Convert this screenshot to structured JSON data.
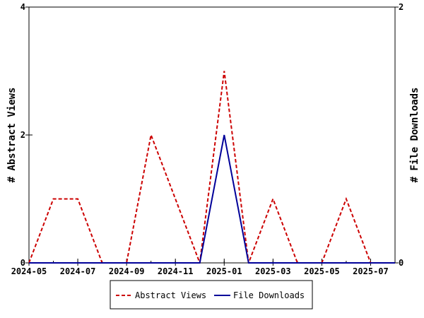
{
  "chart_data": {
    "type": "line",
    "x": [
      "2024-05",
      "2024-06",
      "2024-07",
      "2024-08",
      "2024-09",
      "2024-10",
      "2024-11",
      "2024-12",
      "2025-01",
      "2025-02",
      "2025-03",
      "2025-04",
      "2025-05",
      "2025-06",
      "2025-07",
      "2025-08"
    ],
    "x_tick_labels": [
      "2024-05",
      "2024-07",
      "2024-09",
      "2024-11",
      "2025-01",
      "2025-03",
      "2025-05",
      "2025-07"
    ],
    "series": [
      {
        "name": "Abstract Views",
        "axis": "left",
        "color": "#cc0000",
        "line_style": "dashed",
        "values": [
          0,
          1,
          1,
          0,
          0,
          2,
          1,
          0,
          3,
          0,
          1,
          0,
          0,
          1,
          0,
          0
        ]
      },
      {
        "name": "File Downloads",
        "axis": "right",
        "color": "#000099",
        "line_style": "solid",
        "values": [
          0,
          0,
          0,
          0,
          0,
          0,
          0,
          0,
          1,
          0,
          0,
          0,
          0,
          0,
          0,
          0
        ]
      }
    ],
    "ylabel_left": "# Abstract Views",
    "ylabel_right": "# File Downloads",
    "ylim_left": [
      0,
      4
    ],
    "ylim_right": [
      0,
      2
    ],
    "y_ticks_left": [
      0,
      2,
      4
    ],
    "y_ticks_right": [
      0,
      2
    ],
    "legend_position": "bottom",
    "grid": false
  }
}
